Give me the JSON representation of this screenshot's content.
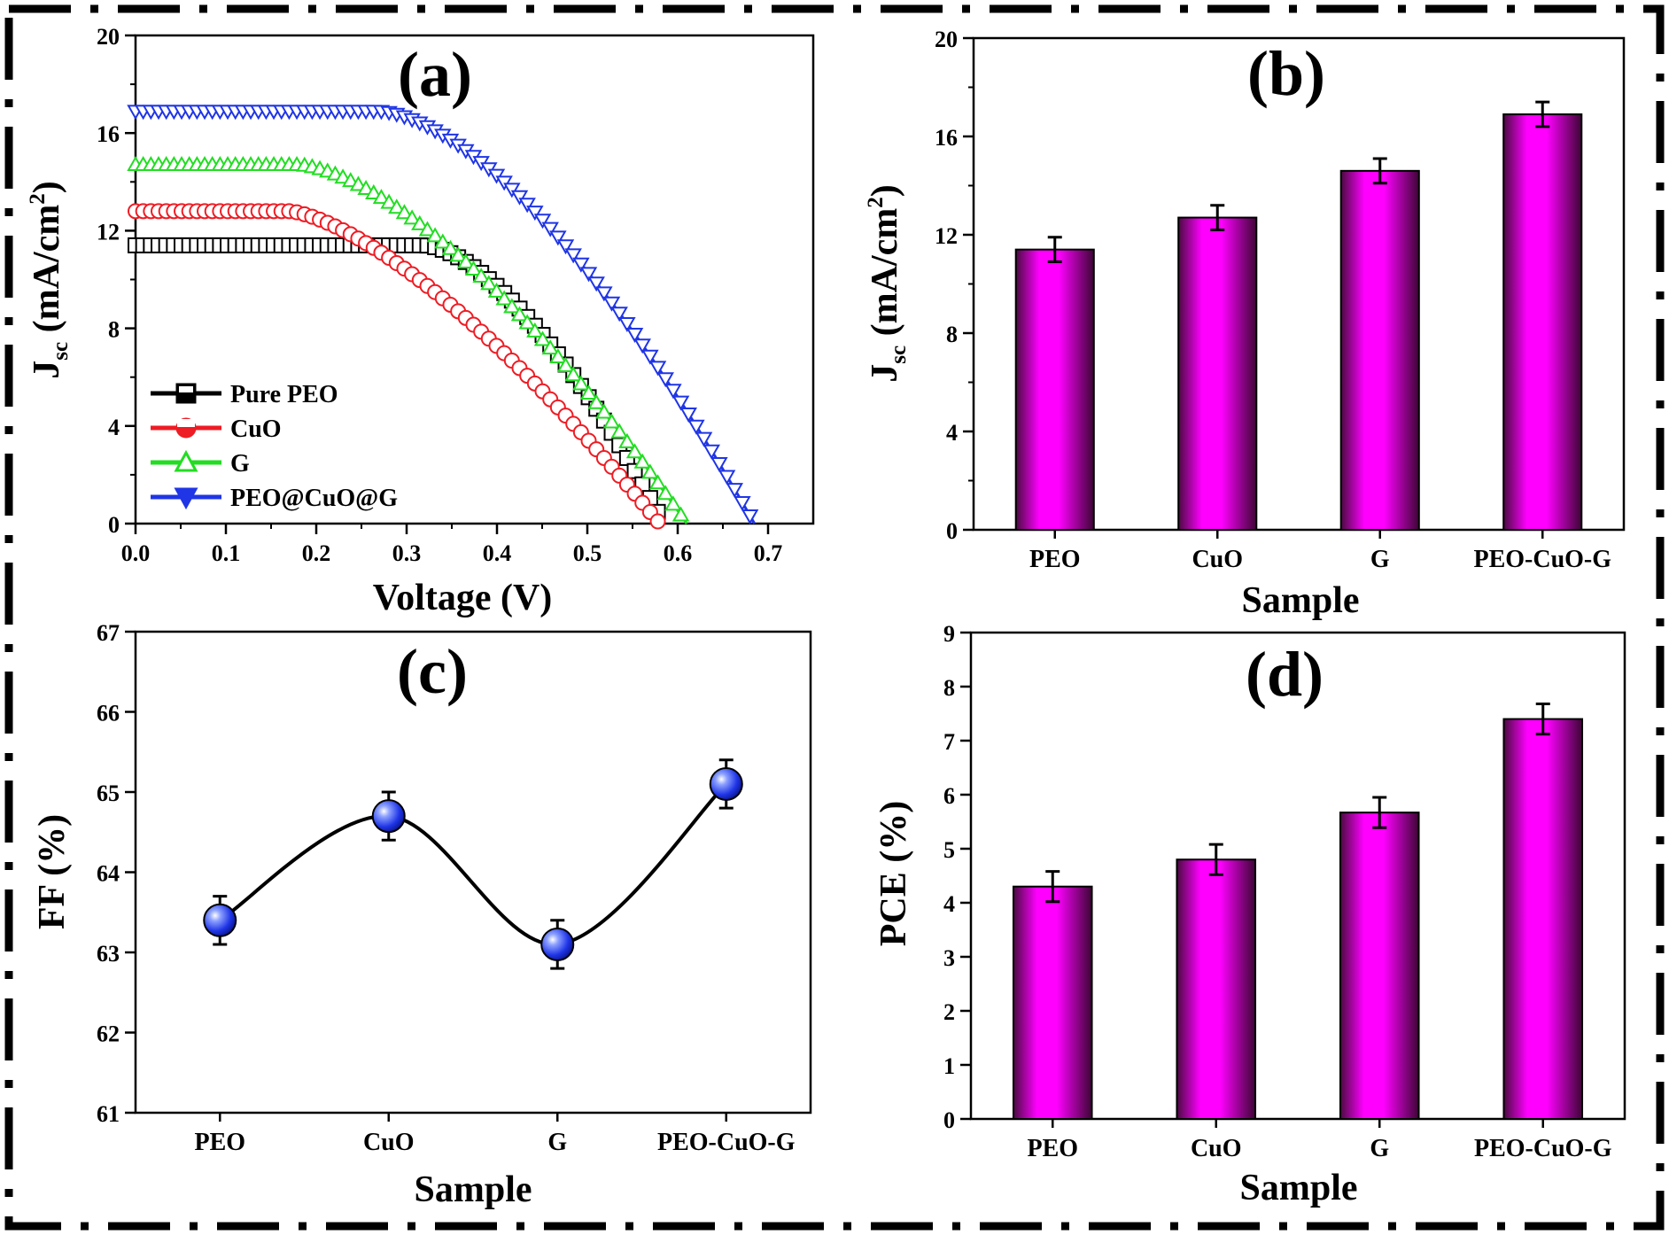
{
  "chart_data": [
    {
      "panel_label": "(a)",
      "type": "line",
      "xlabel": "Voltage (V)",
      "ylabel_main": "J",
      "ylabel_sub": "sc",
      "ylabel_unit": " (mA/cm",
      "ylabel_sup": "2",
      "ylabel_close": ")",
      "xlim": [
        0,
        0.75
      ],
      "ylim": [
        0,
        20
      ],
      "xticks": [
        "0.0",
        "0.1",
        "0.2",
        "0.3",
        "0.4",
        "0.5",
        "0.6",
        "0.7"
      ],
      "yticks": [
        "0",
        "4",
        "8",
        "12",
        "16",
        "20"
      ],
      "legend_position": "bottom-left",
      "series": [
        {
          "name": "Pure PEO",
          "color": "#000000",
          "marker": "half-square",
          "jsc": 11.4,
          "voc": 0.585,
          "curve_start": 0.32,
          "shape": 1.6
        },
        {
          "name": "CuO",
          "color": "#ee1c24",
          "marker": "half-circle",
          "jsc": 12.8,
          "voc": 0.58,
          "curve_start": 0.17,
          "shape": 1.45
        },
        {
          "name": "G",
          "color": "#22dd22",
          "marker": "triangle-up",
          "jsc": 14.7,
          "voc": 0.61,
          "curve_start": 0.18,
          "shape": 1.55
        },
        {
          "name": "PEO@CuO@G",
          "color": "#1f35e6",
          "marker": "triangle-down",
          "jsc": 16.9,
          "voc": 0.685,
          "curve_start": 0.27,
          "shape": 1.6
        }
      ]
    },
    {
      "panel_label": "(b)",
      "type": "bar",
      "categories": [
        "PEO",
        "CuO",
        "G",
        "PEO-CuO-G"
      ],
      "values": [
        11.4,
        12.7,
        14.6,
        16.9
      ],
      "errors": [
        0.5,
        0.5,
        0.5,
        0.5
      ],
      "xlabel": "Sample",
      "ylabel_main": "J",
      "ylabel_sub": "sc",
      "ylabel_unit": " (mA/cm",
      "ylabel_sup": "2",
      "ylabel_close": ")",
      "ylim": [
        0,
        20
      ],
      "yticks": [
        "0",
        "4",
        "8",
        "12",
        "16",
        "20"
      ],
      "bar_color": "#ff00ff"
    },
    {
      "panel_label": "(c)",
      "type": "scatter",
      "categories": [
        "PEO",
        "CuO",
        "G",
        "PEO-CuO-G"
      ],
      "values": [
        63.4,
        64.7,
        63.1,
        65.1
      ],
      "errors": [
        0.3,
        0.3,
        0.3,
        0.3
      ],
      "xlabel": "Sample",
      "ylabel": "FF (%)",
      "ylim": [
        61,
        67
      ],
      "yticks": [
        "61",
        "62",
        "63",
        "64",
        "65",
        "66",
        "67"
      ],
      "marker_color": "#1f35e6"
    },
    {
      "panel_label": "(d)",
      "type": "bar",
      "categories": [
        "PEO",
        "CuO",
        "G",
        "PEO-CuO-G"
      ],
      "values": [
        4.3,
        4.8,
        5.67,
        7.4
      ],
      "errors": [
        0.28,
        0.28,
        0.28,
        0.28
      ],
      "xlabel": "Sample",
      "ylabel": "PCE (%)",
      "ylim": [
        0,
        9
      ],
      "yticks": [
        "0",
        "1",
        "2",
        "3",
        "4",
        "5",
        "6",
        "7",
        "8",
        "9"
      ],
      "bar_color": "#ff00ff"
    }
  ]
}
